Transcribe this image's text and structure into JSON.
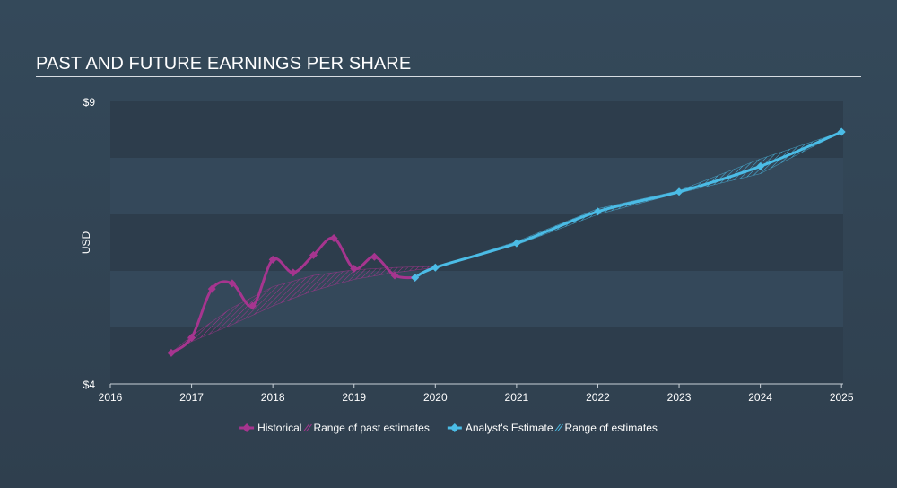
{
  "chart_data": {
    "type": "line",
    "title": "PAST AND FUTURE EARNINGS PER SHARE",
    "ylabel": "USD",
    "xlabel": "",
    "xlim": [
      2016,
      2025.02
    ],
    "ylim": [
      4,
      9
    ],
    "y_tick_labels": [
      {
        "value": 9,
        "label": "$9"
      },
      {
        "value": 4,
        "label": "$4"
      }
    ],
    "x_ticks": [
      2016,
      2017,
      2018,
      2019,
      2020,
      2021,
      2022,
      2023,
      2024,
      2025
    ],
    "series": [
      {
        "name": "Historical",
        "color": "#a6358f",
        "points": [
          [
            2016.75,
            4.55
          ],
          [
            2017.0,
            4.82
          ],
          [
            2017.25,
            5.68
          ],
          [
            2017.5,
            5.78
          ],
          [
            2017.75,
            5.38
          ],
          [
            2018.0,
            6.2
          ],
          [
            2018.25,
            5.97
          ],
          [
            2018.5,
            6.28
          ],
          [
            2018.75,
            6.58
          ],
          [
            2019.0,
            6.04
          ],
          [
            2019.25,
            6.25
          ],
          [
            2019.5,
            5.92
          ],
          [
            2019.75,
            5.88
          ]
        ]
      },
      {
        "name": "Analyst's Estimate",
        "color": "#4bbce6",
        "points": [
          [
            2019.75,
            5.88
          ],
          [
            2020.0,
            6.06
          ],
          [
            2021.0,
            6.49
          ],
          [
            2022.0,
            7.05
          ],
          [
            2023.0,
            7.4
          ],
          [
            2024.0,
            7.85
          ],
          [
            2025.0,
            8.46
          ]
        ]
      }
    ],
    "ranges": [
      {
        "name": "Range of past estimates",
        "color": "#a6358f",
        "upper": [
          [
            2016.75,
            4.55
          ],
          [
            2017.0,
            4.85
          ],
          [
            2017.5,
            5.35
          ],
          [
            2018.0,
            5.72
          ],
          [
            2018.5,
            5.92
          ],
          [
            2019.0,
            6.02
          ],
          [
            2019.5,
            6.06
          ],
          [
            2020.0,
            6.08
          ]
        ],
        "lower": [
          [
            2016.75,
            4.55
          ],
          [
            2017.0,
            4.75
          ],
          [
            2017.5,
            5.05
          ],
          [
            2018.0,
            5.38
          ],
          [
            2018.5,
            5.65
          ],
          [
            2019.0,
            5.85
          ],
          [
            2019.5,
            5.97
          ],
          [
            2020.0,
            6.06
          ]
        ]
      },
      {
        "name": "Range of estimates",
        "color": "#4bbce6",
        "upper": [
          [
            2020.0,
            6.06
          ],
          [
            2021.0,
            6.52
          ],
          [
            2022.0,
            7.1
          ],
          [
            2023.0,
            7.42
          ],
          [
            2024.0,
            7.98
          ],
          [
            2025.0,
            8.46
          ]
        ],
        "lower": [
          [
            2020.0,
            6.06
          ],
          [
            2021.0,
            6.46
          ],
          [
            2022.0,
            7.0
          ],
          [
            2023.0,
            7.38
          ],
          [
            2024.0,
            7.72
          ],
          [
            2025.0,
            8.46
          ]
        ]
      }
    ],
    "legend": {
      "position": "bottom-center",
      "items": [
        {
          "label": "Historical",
          "kind": "line",
          "color": "#a6358f"
        },
        {
          "label": "Range of past estimates",
          "kind": "hatch",
          "color": "#a6358f"
        },
        {
          "label": "Analyst's Estimate",
          "kind": "line",
          "color": "#4bbce6"
        },
        {
          "label": "Range of estimates",
          "kind": "hatch",
          "color": "#4bbce6"
        }
      ]
    },
    "grid": "alternating horizontal bands"
  }
}
